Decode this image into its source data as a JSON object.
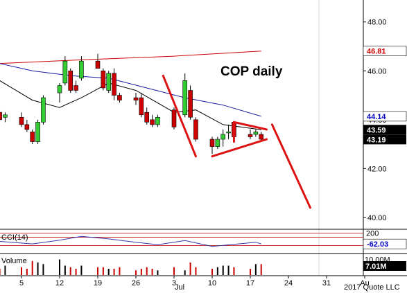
{
  "chart_data": {
    "type": "candlestick",
    "title": "COP daily",
    "copyright": "2017 Quote LLC",
    "y_ticks": [
      "48.00",
      "46.00",
      "44.00",
      "42.00",
      "40.00"
    ],
    "ylim": [
      39.6,
      48.9
    ],
    "x_ticks": [
      {
        "label": "5",
        "date": "2017-06-05"
      },
      {
        "label": "12",
        "date": "2017-06-12"
      },
      {
        "label": "19",
        "date": "2017-06-19"
      },
      {
        "label": "26",
        "date": "2017-06-26"
      },
      {
        "label": "3",
        "date": "2017-07-03"
      },
      {
        "label": "10",
        "date": "2017-07-10"
      },
      {
        "label": "17",
        "date": "2017-07-17"
      },
      {
        "label": "24",
        "date": "2017-07-24"
      },
      {
        "label": "31",
        "date": "2017-07-31"
      },
      {
        "label": "Au",
        "date": "2017-08-07"
      }
    ],
    "month_label": "Jul",
    "candles": [
      {
        "date": "2017-06-01",
        "o": 44.3,
        "h": 44.4,
        "l": 44.0,
        "c": 44.0
      },
      {
        "date": "2017-06-02",
        "o": 44.1,
        "h": 44.3,
        "l": 43.9,
        "c": 44.2
      },
      {
        "date": "2017-06-05",
        "o": 44.1,
        "h": 44.3,
        "l": 43.7,
        "c": 43.8
      },
      {
        "date": "2017-06-06",
        "o": 43.8,
        "h": 44.0,
        "l": 43.5,
        "c": 43.6
      },
      {
        "date": "2017-06-07",
        "o": 43.5,
        "h": 43.6,
        "l": 43.0,
        "c": 43.1
      },
      {
        "date": "2017-06-08",
        "o": 43.1,
        "h": 44.0,
        "l": 43.0,
        "c": 43.9
      },
      {
        "date": "2017-06-09",
        "o": 43.9,
        "h": 45.0,
        "l": 43.8,
        "c": 44.9
      },
      {
        "date": "2017-06-12",
        "o": 45.1,
        "h": 45.5,
        "l": 44.7,
        "c": 45.4
      },
      {
        "date": "2017-06-13",
        "o": 45.5,
        "h": 46.6,
        "l": 45.4,
        "c": 46.4
      },
      {
        "date": "2017-06-14",
        "o": 46.0,
        "h": 46.1,
        "l": 45.1,
        "c": 45.2
      },
      {
        "date": "2017-06-15",
        "o": 45.4,
        "h": 45.6,
        "l": 45.1,
        "c": 45.2
      },
      {
        "date": "2017-06-16",
        "o": 45.7,
        "h": 46.6,
        "l": 45.6,
        "c": 46.4
      },
      {
        "date": "2017-06-19",
        "o": 46.4,
        "h": 46.7,
        "l": 46.1,
        "c": 46.1
      },
      {
        "date": "2017-06-20",
        "o": 46.0,
        "h": 46.1,
        "l": 45.2,
        "c": 45.3
      },
      {
        "date": "2017-06-21",
        "o": 45.2,
        "h": 46.0,
        "l": 45.1,
        "c": 45.9
      },
      {
        "date": "2017-06-22",
        "o": 45.9,
        "h": 46.1,
        "l": 44.8,
        "c": 45.0
      },
      {
        "date": "2017-06-23",
        "o": 45.0,
        "h": 45.1,
        "l": 44.7,
        "c": 44.8
      },
      {
        "date": "2017-06-26",
        "o": 44.9,
        "h": 45.1,
        "l": 44.6,
        "c": 44.8
      },
      {
        "date": "2017-06-27",
        "o": 44.9,
        "h": 45.1,
        "l": 44.1,
        "c": 44.2
      },
      {
        "date": "2017-06-28",
        "o": 44.3,
        "h": 44.5,
        "l": 43.8,
        "c": 43.9
      },
      {
        "date": "2017-06-29",
        "o": 44.0,
        "h": 44.2,
        "l": 43.7,
        "c": 43.8
      },
      {
        "date": "2017-06-30",
        "o": 43.8,
        "h": 44.2,
        "l": 43.7,
        "c": 44.1
      },
      {
        "date": "2017-07-03",
        "o": 44.4,
        "h": 44.5,
        "l": 43.6,
        "c": 43.7
      },
      {
        "date": "2017-07-05",
        "o": 44.2,
        "h": 45.9,
        "l": 44.1,
        "c": 45.6
      },
      {
        "date": "2017-07-06",
        "o": 45.2,
        "h": 45.4,
        "l": 44.0,
        "c": 44.1
      },
      {
        "date": "2017-07-07",
        "o": 44.0,
        "h": 44.1,
        "l": 43.1,
        "c": 43.2
      },
      {
        "date": "2017-07-10",
        "o": 43.2,
        "h": 43.3,
        "l": 42.6,
        "c": 42.9
      },
      {
        "date": "2017-07-11",
        "o": 42.9,
        "h": 43.3,
        "l": 42.8,
        "c": 43.2
      },
      {
        "date": "2017-07-12",
        "o": 43.2,
        "h": 43.6,
        "l": 42.9,
        "c": 43.4
      },
      {
        "date": "2017-07-13",
        "o": 43.5,
        "h": 43.8,
        "l": 43.2,
        "c": 43.5
      },
      {
        "date": "2017-07-14",
        "o": 43.9,
        "h": 43.9,
        "l": 43.2,
        "c": 43.3
      },
      {
        "date": "2017-07-17",
        "o": 43.4,
        "h": 43.6,
        "l": 43.2,
        "c": 43.3
      },
      {
        "date": "2017-07-18",
        "o": 43.4,
        "h": 43.6,
        "l": 43.3,
        "c": 43.5
      },
      {
        "date": "2017-07-19",
        "o": 43.4,
        "h": 43.5,
        "l": 43.1,
        "c": 43.2
      }
    ],
    "ma_long": [
      {
        "date": "2017-06-01",
        "v": 46.3
      },
      {
        "date": "2017-06-16",
        "v": 46.45
      },
      {
        "date": "2017-07-03",
        "v": 46.6
      },
      {
        "date": "2017-07-19",
        "v": 46.81
      }
    ],
    "ma_mid": [
      {
        "date": "2017-06-01",
        "v": 46.3
      },
      {
        "date": "2017-06-07",
        "v": 46.0
      },
      {
        "date": "2017-06-14",
        "v": 45.8
      },
      {
        "date": "2017-06-21",
        "v": 45.7
      },
      {
        "date": "2017-06-28",
        "v": 45.3
      },
      {
        "date": "2017-07-05",
        "v": 44.9
      },
      {
        "date": "2017-07-12",
        "v": 44.6
      },
      {
        "date": "2017-07-19",
        "v": 44.14
      }
    ],
    "ma_short": [
      {
        "date": "2017-06-01",
        "v": 45.6
      },
      {
        "date": "2017-06-07",
        "v": 44.8
      },
      {
        "date": "2017-06-12",
        "v": 44.5
      },
      {
        "date": "2017-06-16",
        "v": 44.9
      },
      {
        "date": "2017-06-21",
        "v": 45.5
      },
      {
        "date": "2017-06-26",
        "v": 45.2
      },
      {
        "date": "2017-07-03",
        "v": 44.3
      },
      {
        "date": "2017-07-07",
        "v": 44.4
      },
      {
        "date": "2017-07-12",
        "v": 43.8
      },
      {
        "date": "2017-07-19",
        "v": 43.59
      }
    ],
    "price_badges": [
      {
        "value": 46.81,
        "text": "46.81",
        "bg": "#ffffff",
        "fg": "#cc0000"
      },
      {
        "value": 44.14,
        "text": "44.14",
        "bg": "#ffffff",
        "fg": "#0000cc"
      },
      {
        "value": 43.59,
        "text": "43.59",
        "bg": "#000000",
        "fg": "#ffffff"
      },
      {
        "value": 43.19,
        "text": "43.19",
        "bg": "#000000",
        "fg": "#ffffff"
      }
    ],
    "annotations": [
      {
        "kind": "line",
        "from": {
          "date": "2017-07-01",
          "v": 45.8
        },
        "to": {
          "date": "2017-07-07",
          "v": 42.5
        }
      },
      {
        "kind": "line",
        "from": {
          "date": "2017-07-10",
          "v": 42.5
        },
        "to": {
          "date": "2017-07-20",
          "v": 43.2
        }
      },
      {
        "kind": "line",
        "from": {
          "date": "2017-07-14",
          "v": 43.9
        },
        "to": {
          "date": "2017-07-20",
          "v": 43.6
        }
      },
      {
        "kind": "line",
        "from": {
          "date": "2017-07-14",
          "v": 43.9
        },
        "to": {
          "date": "2017-07-14",
          "v": 43.1
        }
      },
      {
        "kind": "line",
        "from": {
          "date": "2017-07-21",
          "v": 43.8
        },
        "to": {
          "date": "2017-07-28",
          "v": 40.4
        }
      }
    ],
    "cci": {
      "label": "CCI(14)",
      "levels": [
        200,
        100,
        -100
      ],
      "ylim": [
        -260,
        260
      ],
      "badge": "-62.03",
      "top_tick": "200",
      "series": [
        {
          "date": "2017-06-01",
          "v": 0
        },
        {
          "date": "2017-06-07",
          "v": -60
        },
        {
          "date": "2017-06-12",
          "v": 30
        },
        {
          "date": "2017-06-16",
          "v": 120
        },
        {
          "date": "2017-06-21",
          "v": 60
        },
        {
          "date": "2017-06-26",
          "v": -20
        },
        {
          "date": "2017-06-30",
          "v": -80
        },
        {
          "date": "2017-07-05",
          "v": 20
        },
        {
          "date": "2017-07-10",
          "v": -120
        },
        {
          "date": "2017-07-14",
          "v": -70
        },
        {
          "date": "2017-07-18",
          "v": -20
        },
        {
          "date": "2017-07-19",
          "v": -62
        }
      ]
    },
    "volume": {
      "label": "Volume",
      "badge": "7.01M",
      "top_tick": "10.00M",
      "ylim": [
        0,
        12
      ],
      "bars": [
        4,
        6,
        5,
        4,
        9,
        8,
        7,
        10,
        6,
        5,
        4,
        6,
        5,
        5,
        4,
        4,
        5,
        3,
        4,
        5,
        4,
        3,
        5,
        3,
        8,
        5,
        4,
        5,
        6,
        6,
        5,
        4,
        7,
        7
      ]
    }
  }
}
